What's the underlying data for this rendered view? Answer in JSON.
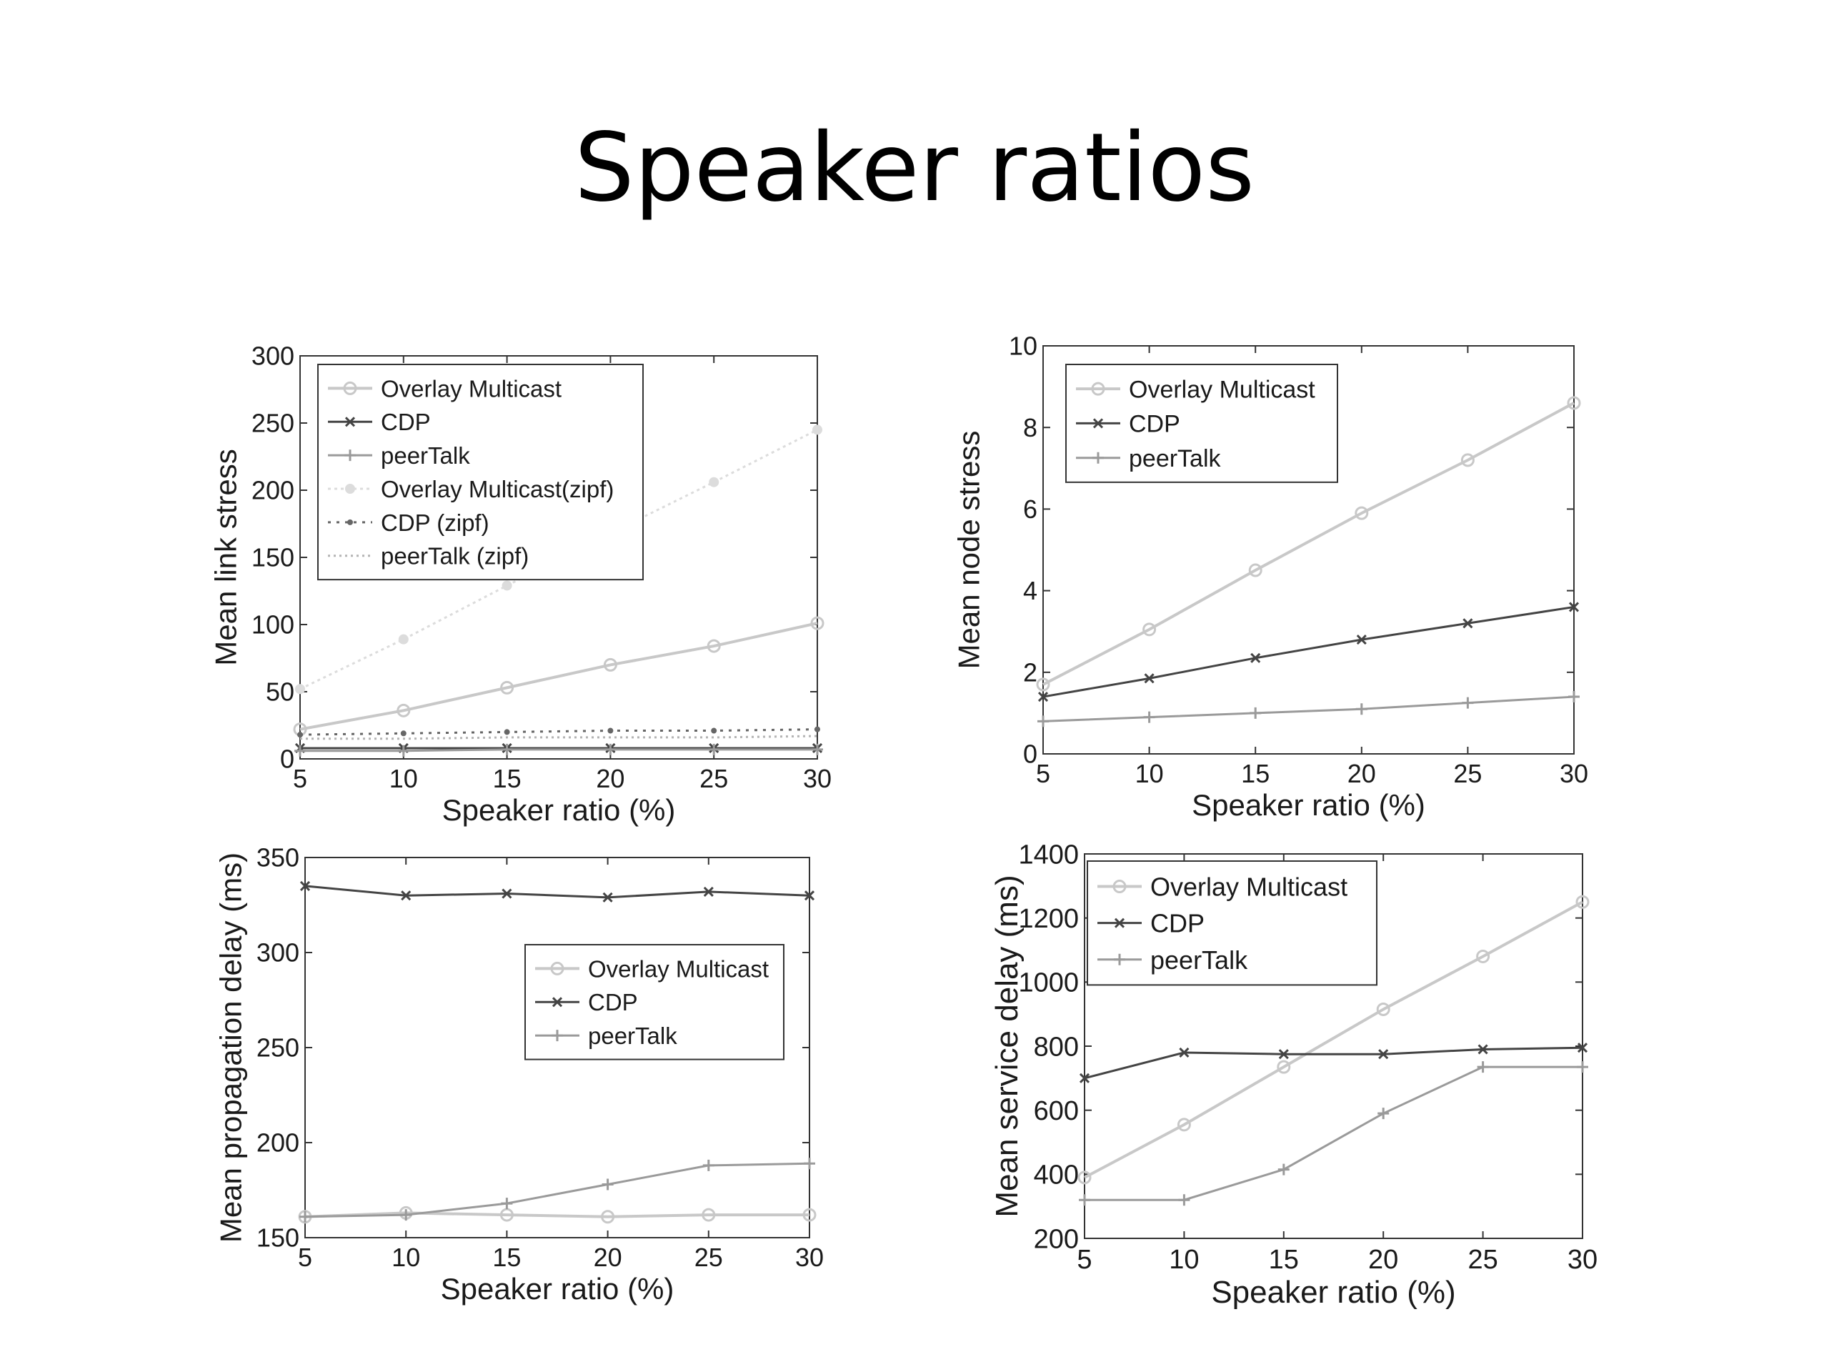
{
  "slide": {
    "title": "Speaker ratios"
  },
  "colors": {
    "overlay": "#c8c8c8",
    "cdp": "#444444",
    "peertalk": "#9a9a9a",
    "overlay_zipf": "#dcdcdc",
    "cdp_zipf": "#666666",
    "peertalk_zipf": "#b4b4b4"
  },
  "chart_data": [
    {
      "type": "line",
      "xlabel": "Speaker ratio (%)",
      "ylabel": "Mean link stress",
      "x": [
        5,
        10,
        15,
        20,
        25,
        30
      ],
      "xlim": [
        5,
        30
      ],
      "ylim": [
        0,
        300
      ],
      "xticks": [
        "5",
        "10",
        "15",
        "20",
        "25",
        "30"
      ],
      "yticks": [
        "0",
        "50",
        "100",
        "150",
        "200",
        "250",
        "300"
      ],
      "legend_position": "top-left",
      "series": [
        {
          "name": "Overlay Multicast",
          "values": [
            22,
            36,
            53,
            70,
            84,
            101
          ],
          "style": "overlay"
        },
        {
          "name": "CDP",
          "values": [
            8,
            8,
            8,
            8,
            8,
            8
          ],
          "style": "cdp"
        },
        {
          "name": "peerTalk",
          "values": [
            6,
            6,
            7,
            7,
            7,
            7
          ],
          "style": "peertalk"
        },
        {
          "name": "Overlay Multicast(zipf)",
          "values": [
            52,
            89,
            129,
            168,
            206,
            245
          ],
          "style": "overlay_zipf"
        },
        {
          "name": "CDP (zipf)",
          "values": [
            18,
            19,
            20,
            21,
            21,
            22
          ],
          "style": "cdp_zipf"
        },
        {
          "name": "peerTalk (zipf)",
          "values": [
            15,
            15,
            16,
            16,
            16,
            17
          ],
          "style": "peertalk_zipf"
        }
      ]
    },
    {
      "type": "line",
      "xlabel": "Speaker ratio (%)",
      "ylabel": "Mean node stress",
      "x": [
        5,
        10,
        15,
        20,
        25,
        30
      ],
      "xlim": [
        5,
        30
      ],
      "ylim": [
        0,
        10
      ],
      "xticks": [
        "5",
        "10",
        "15",
        "20",
        "25",
        "30"
      ],
      "yticks": [
        "0",
        "2",
        "4",
        "6",
        "8",
        "10"
      ],
      "legend_position": "top-left",
      "series": [
        {
          "name": "Overlay Multicast",
          "values": [
            1.7,
            3.05,
            4.5,
            5.9,
            7.2,
            8.6
          ],
          "style": "overlay"
        },
        {
          "name": "CDP",
          "values": [
            1.4,
            1.85,
            2.35,
            2.8,
            3.2,
            3.6
          ],
          "style": "cdp"
        },
        {
          "name": "peerTalk",
          "values": [
            0.8,
            0.9,
            1.0,
            1.1,
            1.25,
            1.4
          ],
          "style": "peertalk"
        }
      ]
    },
    {
      "type": "line",
      "xlabel": "Speaker ratio (%)",
      "ylabel": "Mean propagation delay (ms)",
      "x": [
        5,
        10,
        15,
        20,
        25,
        30
      ],
      "xlim": [
        5,
        30
      ],
      "ylim": [
        150,
        350
      ],
      "xticks": [
        "5",
        "10",
        "15",
        "20",
        "25",
        "30"
      ],
      "yticks": [
        "150",
        "200",
        "250",
        "300",
        "350"
      ],
      "legend_position": "center-right",
      "series": [
        {
          "name": "Overlay Multicast",
          "values": [
            161,
            163,
            162,
            161,
            162,
            162
          ],
          "style": "overlay"
        },
        {
          "name": "CDP",
          "values": [
            335,
            330,
            331,
            329,
            332,
            330
          ],
          "style": "cdp"
        },
        {
          "name": "peerTalk",
          "values": [
            161,
            162,
            168,
            178,
            188,
            189
          ],
          "style": "peertalk"
        }
      ]
    },
    {
      "type": "line",
      "xlabel": "Speaker ratio (%)",
      "ylabel": "Mean service delay (ms)",
      "x": [
        5,
        10,
        15,
        20,
        25,
        30
      ],
      "xlim": [
        5,
        30
      ],
      "ylim": [
        200,
        1400
      ],
      "xticks": [
        "5",
        "10",
        "15",
        "20",
        "25",
        "30"
      ],
      "yticks": [
        "200",
        "400",
        "600",
        "800",
        "1000",
        "1200",
        "1400"
      ],
      "legend_position": "top-left",
      "series": [
        {
          "name": "Overlay Multicast",
          "values": [
            390,
            555,
            735,
            915,
            1080,
            1250
          ],
          "style": "overlay"
        },
        {
          "name": "CDP",
          "values": [
            700,
            780,
            775,
            775,
            790,
            795
          ],
          "style": "cdp"
        },
        {
          "name": "peerTalk",
          "values": [
            320,
            320,
            415,
            590,
            735,
            735
          ],
          "style": "peertalk"
        }
      ]
    }
  ]
}
